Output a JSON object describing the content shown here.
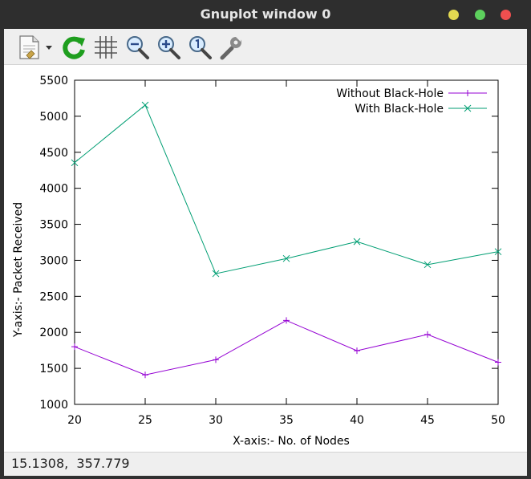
{
  "window": {
    "title": "Gnuplot window 0"
  },
  "toolbar": {
    "items": [
      {
        "name": "copy-print-menu",
        "icon": "document-icon"
      },
      {
        "name": "replot",
        "icon": "refresh-icon"
      },
      {
        "name": "toggle-grid",
        "icon": "grid-icon"
      },
      {
        "name": "zoom-previous",
        "icon": "zoom-out-icon"
      },
      {
        "name": "zoom-next",
        "icon": "zoom-in-icon"
      },
      {
        "name": "autoscale",
        "icon": "zoom-fit-icon"
      },
      {
        "name": "options",
        "icon": "wrench-icon"
      }
    ]
  },
  "chart_data": {
    "type": "line",
    "xlabel": "X-axis:- No. of Nodes",
    "ylabel": "Y-axis:- Packet Received",
    "xlim": [
      20,
      50
    ],
    "ylim": [
      1000,
      5500
    ],
    "xticks": [
      "20",
      "25",
      "30",
      "35",
      "40",
      "45",
      "50"
    ],
    "yticks": [
      "1000",
      "1500",
      "2000",
      "2500",
      "3000",
      "3500",
      "4000",
      "4500",
      "5000",
      "5500"
    ],
    "grid": false,
    "legend": "top-right",
    "x": [
      20,
      25,
      30,
      35,
      40,
      45,
      50
    ],
    "series": [
      {
        "name": "Without Black-Hole",
        "color": "#9400d3",
        "marker": "plus",
        "values": [
          1800,
          1410,
          1620,
          2165,
          1745,
          1970,
          1585
        ]
      },
      {
        "name": "With Black-Hole",
        "color": "#009e73",
        "marker": "cross",
        "values": [
          4355,
          5155,
          2815,
          3025,
          3260,
          2940,
          3120
        ]
      }
    ]
  },
  "statusbar": {
    "coords": "15.1308,  357.779"
  }
}
